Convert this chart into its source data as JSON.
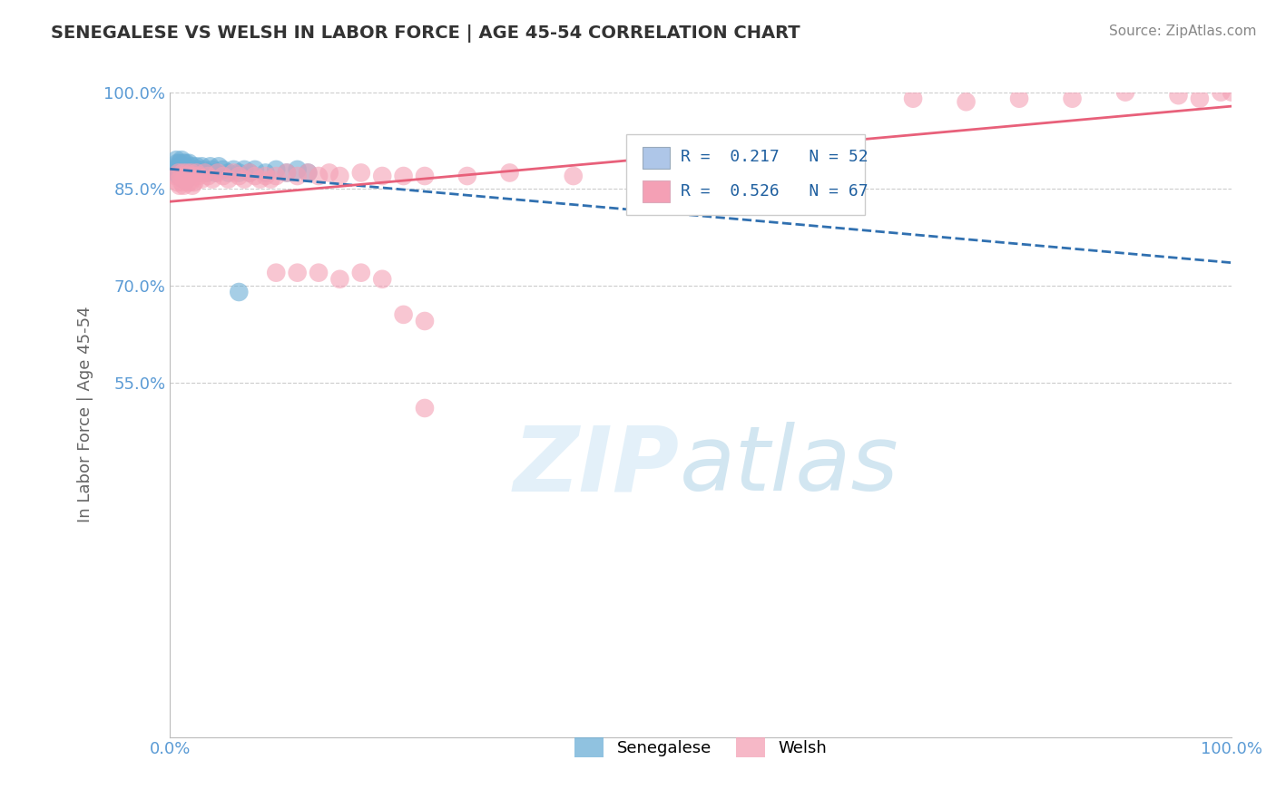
{
  "title": "SENEGALESE VS WELSH IN LABOR FORCE | AGE 45-54 CORRELATION CHART",
  "source": "Source: ZipAtlas.com",
  "xlabel": "",
  "ylabel": "In Labor Force | Age 45-54",
  "legend_label1": "Senegalese",
  "legend_label2": "Welsh",
  "R1": 0.217,
  "N1": 52,
  "R2": 0.526,
  "N2": 67,
  "color1": "#6baed6",
  "color2": "#f4a0b5",
  "line_color1": "#3070b0",
  "line_color2": "#e8607a",
  "background": "#ffffff",
  "xlim": [
    0.0,
    1.0
  ],
  "ylim": [
    0.0,
    1.0
  ],
  "yticks": [
    0.0,
    0.55,
    0.7,
    0.85,
    1.0
  ],
  "ytick_labels": [
    "",
    "55.0%",
    "70.0%",
    "85.0%",
    "100.0%"
  ],
  "xtick_labels": [
    "0.0%",
    "100.0%"
  ],
  "senegalese_x": [
    0.005,
    0.006,
    0.007,
    0.007,
    0.008,
    0.008,
    0.009,
    0.009,
    0.01,
    0.01,
    0.011,
    0.011,
    0.012,
    0.012,
    0.013,
    0.013,
    0.014,
    0.014,
    0.015,
    0.015,
    0.016,
    0.016,
    0.017,
    0.018,
    0.019,
    0.02,
    0.021,
    0.022,
    0.023,
    0.025,
    0.026,
    0.028,
    0.03,
    0.032,
    0.035,
    0.038,
    0.04,
    0.043,
    0.046,
    0.05,
    0.055,
    0.06,
    0.065,
    0.07,
    0.075,
    0.08,
    0.09,
    0.1,
    0.11,
    0.12,
    0.13,
    0.065
  ],
  "senegalese_y": [
    0.88,
    0.895,
    0.875,
    0.89,
    0.87,
    0.885,
    0.875,
    0.89,
    0.87,
    0.885,
    0.875,
    0.895,
    0.865,
    0.88,
    0.875,
    0.89,
    0.87,
    0.885,
    0.875,
    0.89,
    0.865,
    0.88,
    0.875,
    0.89,
    0.88,
    0.875,
    0.885,
    0.88,
    0.875,
    0.885,
    0.88,
    0.875,
    0.885,
    0.88,
    0.875,
    0.885,
    0.88,
    0.875,
    0.885,
    0.88,
    0.875,
    0.88,
    0.875,
    0.88,
    0.875,
    0.88,
    0.875,
    0.88,
    0.875,
    0.88,
    0.875,
    0.69
  ],
  "welsh_x": [
    0.005,
    0.007,
    0.008,
    0.009,
    0.01,
    0.011,
    0.012,
    0.013,
    0.014,
    0.015,
    0.016,
    0.017,
    0.018,
    0.019,
    0.02,
    0.021,
    0.022,
    0.023,
    0.025,
    0.027,
    0.03,
    0.033,
    0.036,
    0.04,
    0.045,
    0.05,
    0.055,
    0.06,
    0.065,
    0.07,
    0.075,
    0.08,
    0.085,
    0.09,
    0.095,
    0.1,
    0.11,
    0.12,
    0.13,
    0.14,
    0.15,
    0.16,
    0.18,
    0.2,
    0.22,
    0.24,
    0.28,
    0.32,
    0.38,
    0.1,
    0.12,
    0.14,
    0.16,
    0.18,
    0.2,
    0.22,
    0.24,
    0.24,
    0.7,
    0.75,
    0.8,
    0.85,
    0.9,
    0.95,
    0.97,
    0.99,
    1.0
  ],
  "welsh_y": [
    0.87,
    0.86,
    0.875,
    0.855,
    0.87,
    0.86,
    0.875,
    0.855,
    0.87,
    0.865,
    0.875,
    0.86,
    0.87,
    0.86,
    0.875,
    0.855,
    0.87,
    0.86,
    0.875,
    0.87,
    0.865,
    0.875,
    0.87,
    0.865,
    0.875,
    0.87,
    0.865,
    0.875,
    0.87,
    0.865,
    0.875,
    0.87,
    0.865,
    0.87,
    0.865,
    0.87,
    0.875,
    0.87,
    0.875,
    0.87,
    0.875,
    0.87,
    0.875,
    0.87,
    0.87,
    0.87,
    0.87,
    0.875,
    0.87,
    0.72,
    0.72,
    0.72,
    0.71,
    0.72,
    0.71,
    0.655,
    0.645,
    0.51,
    0.99,
    0.985,
    0.99,
    0.99,
    1.0,
    0.995,
    0.99,
    1.0,
    1.0
  ]
}
